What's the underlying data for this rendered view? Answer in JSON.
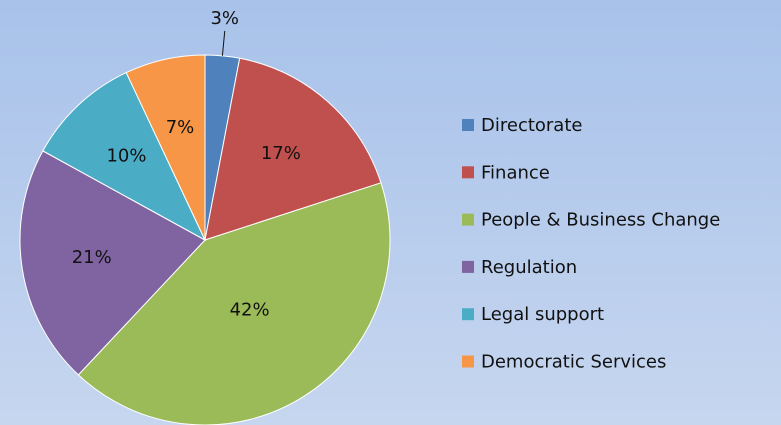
{
  "chart_data": {
    "type": "pie",
    "categories": [
      "Directorate",
      "Finance",
      "People & Business Change",
      "Regulation",
      "Legal support",
      "Democratic Services"
    ],
    "values": [
      3,
      17,
      42,
      21,
      10,
      7
    ],
    "value_labels": [
      "3%",
      "17%",
      "42%",
      "21%",
      "10%",
      "7%"
    ],
    "colors": [
      "#4f81bd",
      "#c0504d",
      "#9bbb59",
      "#8064a2",
      "#4bacc6",
      "#f79646"
    ],
    "legend": "right"
  }
}
